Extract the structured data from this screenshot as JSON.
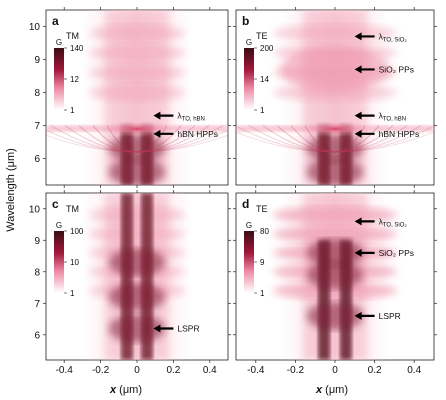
{
  "figure": {
    "ylabel": "Wavelength (μm)",
    "xlabel_italic": "x",
    "xlabel_unit": " (μm)",
    "x_ticks": [
      -0.4,
      -0.2,
      0,
      0.2,
      0.4
    ],
    "x_tick_labels": [
      "-0.4",
      "-0.2",
      "0",
      "0.2",
      "0.4"
    ],
    "y_ticks_top": [
      6,
      7,
      8,
      9,
      10
    ],
    "y_ticks_bottom": [
      6,
      7,
      8,
      9,
      10
    ],
    "colors": {
      "high": "#3a0d15",
      "mid": "#c21f4a",
      "low": "#fbe3ea",
      "background": "#ffffff"
    }
  },
  "chart_data": [
    {
      "type": "heatmap",
      "panel": "a",
      "polarization": "TM",
      "colorbar": {
        "label": "G",
        "ticks": [
          "140",
          "12",
          "1"
        ]
      },
      "xlim": [
        -0.5,
        0.5
      ],
      "ylim": [
        5.2,
        10.5
      ],
      "annotations": [
        {
          "text": "λ",
          "sub": "TO, hBN",
          "y": 7.3
        },
        {
          "text": "hBN HPPs",
          "sub": "",
          "y": 6.75
        }
      ]
    },
    {
      "type": "heatmap",
      "panel": "b",
      "polarization": "TE",
      "colorbar": {
        "label": "G",
        "ticks": [
          "200",
          "14",
          "1"
        ]
      },
      "xlim": [
        -0.5,
        0.5
      ],
      "ylim": [
        5.2,
        10.5
      ],
      "annotations": [
        {
          "text": "λ",
          "sub": "TO, SiO₂",
          "y": 9.7
        },
        {
          "text": "SiO₂ PPs",
          "sub": "",
          "y": 8.7
        },
        {
          "text": "λ",
          "sub": "TO, hBN",
          "y": 7.3
        },
        {
          "text": "hBN HPPs",
          "sub": "",
          "y": 6.75
        }
      ]
    },
    {
      "type": "heatmap",
      "panel": "c",
      "polarization": "TM",
      "colorbar": {
        "label": "G",
        "ticks": [
          "100",
          "10",
          "1"
        ]
      },
      "xlim": [
        -0.5,
        0.5
      ],
      "ylim": [
        5.2,
        10.5
      ],
      "annotations": [
        {
          "text": "LSPR",
          "sub": "",
          "y": 6.2
        }
      ]
    },
    {
      "type": "heatmap",
      "panel": "d",
      "polarization": "TE",
      "colorbar": {
        "label": "G",
        "ticks": [
          "80",
          "9",
          "1"
        ]
      },
      "xlim": [
        -0.5,
        0.5
      ],
      "ylim": [
        5.2,
        10.5
      ],
      "annotations": [
        {
          "text": "λ",
          "sub": "TO, SiO₂",
          "y": 9.6
        },
        {
          "text": "SiO₂ PPs",
          "sub": "",
          "y": 8.6
        },
        {
          "text": "LSPR",
          "sub": "",
          "y": 6.6
        }
      ]
    }
  ]
}
